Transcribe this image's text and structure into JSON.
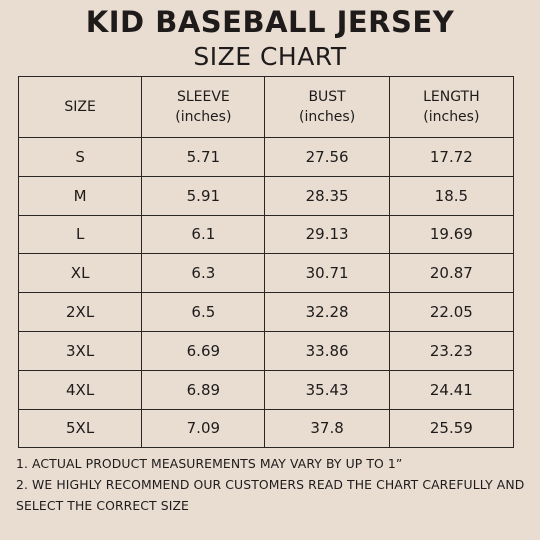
{
  "title": "KID BASEBALL JERSEY",
  "subtitle": "SIZE CHART",
  "table": {
    "headers": [
      {
        "line1": "SIZE",
        "line2": ""
      },
      {
        "line1": "SLEEVE",
        "line2": "(inches)"
      },
      {
        "line1": "BUST",
        "line2": "(inches)"
      },
      {
        "line1": "LENGTH",
        "line2": "(inches)"
      }
    ],
    "rows": [
      [
        "S",
        "5.71",
        "27.56",
        "17.72"
      ],
      [
        "M",
        "5.91",
        "28.35",
        "18.5"
      ],
      [
        "L",
        "6.1",
        "29.13",
        "19.69"
      ],
      [
        "XL",
        "6.3",
        "30.71",
        "20.87"
      ],
      [
        "2XL",
        "6.5",
        "32.28",
        "22.05"
      ],
      [
        "3XL",
        "6.69",
        "33.86",
        "23.23"
      ],
      [
        "4XL",
        "6.89",
        "35.43",
        "24.41"
      ],
      [
        "5XL",
        "7.09",
        "37.8",
        "25.59"
      ]
    ]
  },
  "notes": [
    "1. ACTUAL PRODUCT MEASUREMENTS MAY VARY BY UP TO 1”",
    "2. WE HIGHLY RECOMMEND OUR CUSTOMERS READ THE CHART CAREFULLY AND SELECT THE CORRECT SIZE"
  ],
  "colors": {
    "background": "#e9ddd2",
    "text": "#1e1b1a",
    "border": "#2b2624"
  }
}
